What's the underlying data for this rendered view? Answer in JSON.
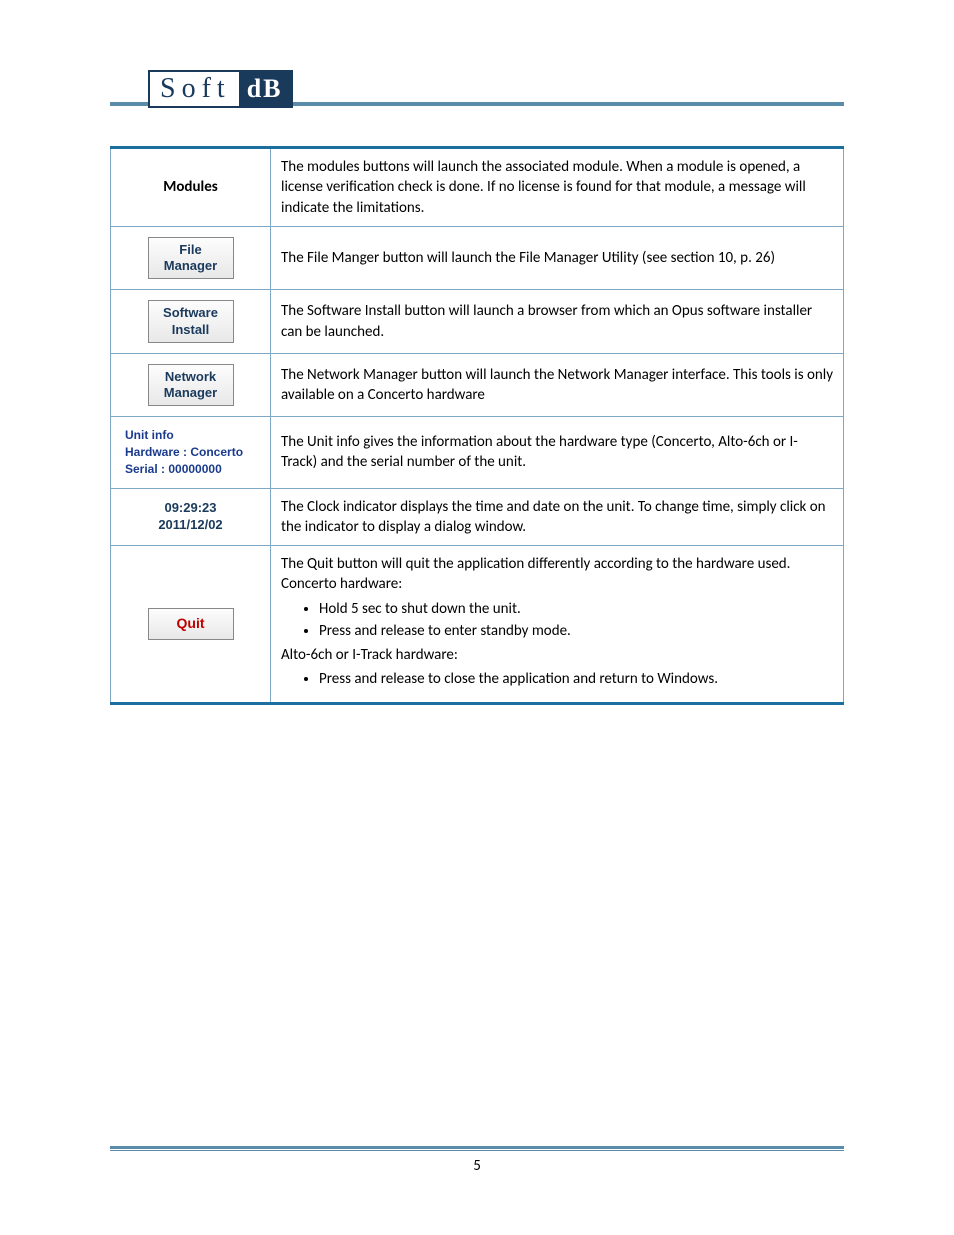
{
  "logo": {
    "left": "Soft",
    "right": "dB"
  },
  "colors": {
    "accent": "#1a6f9e",
    "border": "#7fa8c4",
    "navy": "#1a3a5c",
    "rule": "#5a8ba8",
    "quit": "#c00000"
  },
  "rows": {
    "modules": {
      "label": "Modules",
      "desc": "The modules buttons will launch the associated module. When a module is opened, a license verification check is done. If no license is found for that module, a message will indicate the limitations."
    },
    "fileManager": {
      "line1": "File",
      "line2": "Manager",
      "desc": "The File Manger button will launch the File Manager Utility (see section 10, p. 26)"
    },
    "softwareInstall": {
      "line1": "Software",
      "line2": "Install",
      "desc": "The Software Install button will launch a browser from which an Opus software installer can be launched."
    },
    "networkManager": {
      "line1": "Network",
      "line2": "Manager",
      "desc": "The Network Manager button will launch the Network Manager interface. This tools is only available on a Concerto hardware"
    },
    "unitInfo": {
      "line1": "Unit info",
      "line2": "Hardware : Concerto",
      "line3": "Serial : 00000000",
      "desc": "The Unit info gives the information about the hardware type (Concerto, Alto-6ch or I-Track) and the serial number of the unit."
    },
    "clock": {
      "time": "09:29:23",
      "date": "2011/12/02",
      "desc": "The Clock indicator displays the time and date on the unit. To change time, simply click on the indicator to display a dialog window."
    },
    "quit": {
      "label": "Quit",
      "p1": "The Quit button will quit the application differently according to the hardware used.",
      "p2": "Concerto hardware:",
      "b1": "Hold 5 sec to shut down the unit.",
      "b2": "Press and release to enter standby mode.",
      "p3": "Alto-6ch or I-Track hardware:",
      "b3": "Press and release to close the application and return to Windows."
    }
  },
  "pageNumber": "5"
}
